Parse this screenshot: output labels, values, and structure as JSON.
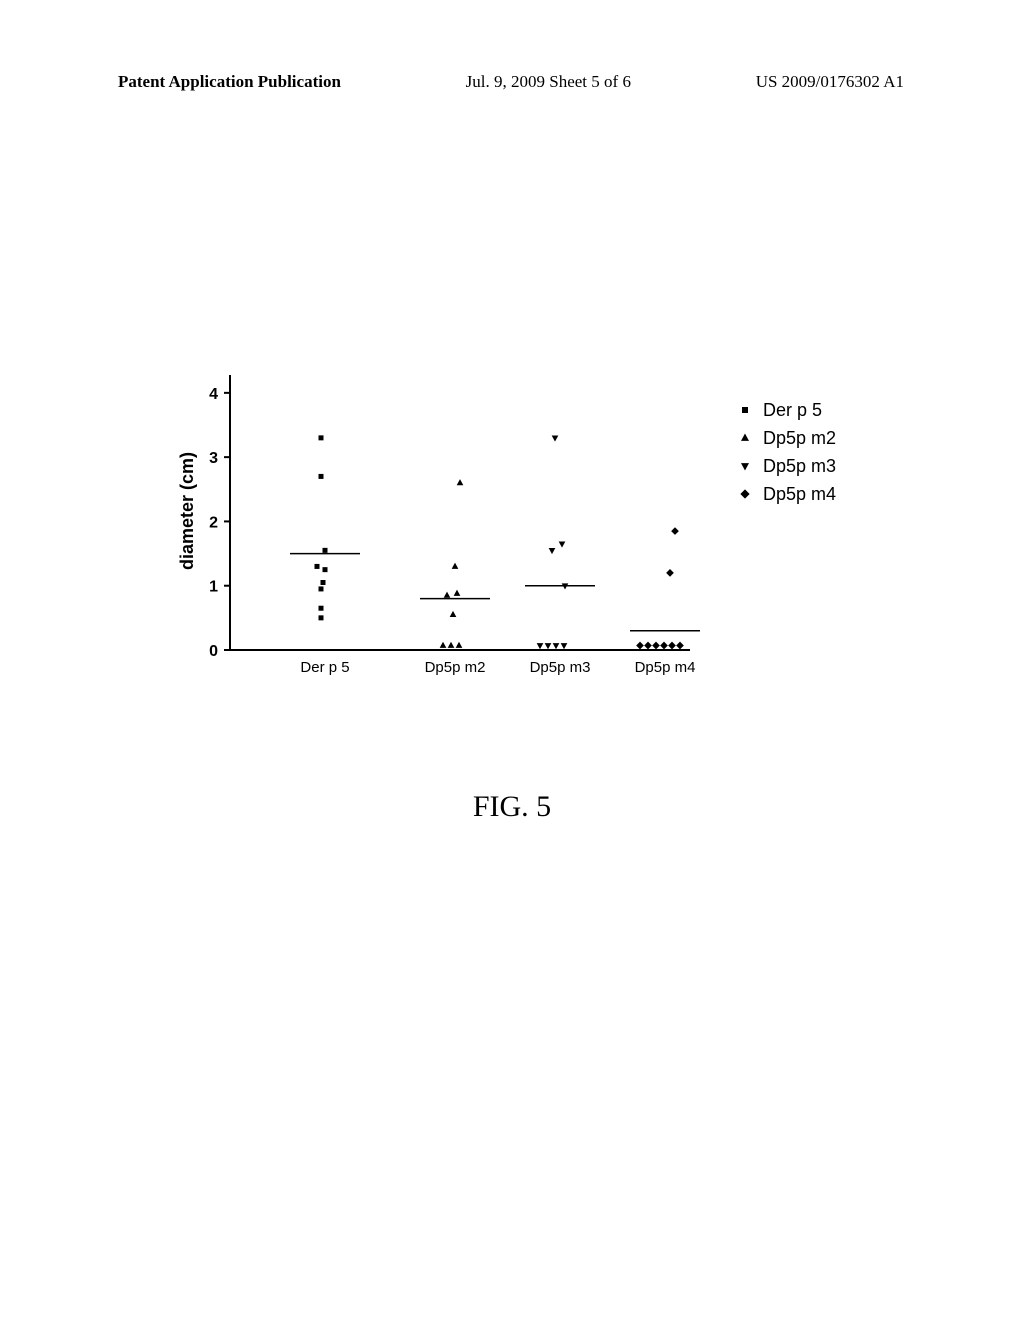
{
  "header": {
    "left": "Patent Application Publication",
    "center": "Jul. 9, 2009  Sheet 5 of 6",
    "right": "US 2009/0176302 A1"
  },
  "figure_label": "FIG. 5",
  "chart": {
    "type": "scatter",
    "ylabel": "diameter (cm)",
    "ylim": [
      0,
      4.2
    ],
    "yticks": [
      0,
      1,
      2,
      3,
      4
    ],
    "categories": [
      "Der p 5",
      "Dp5p m2",
      "Dp5p m3",
      "Dp5p m4"
    ],
    "category_x": [
      95,
      225,
      330,
      435
    ],
    "background_color": "#ffffff",
    "axis_color": "#000000",
    "marker_color": "#000000",
    "marker_size": 5,
    "median_line_halfwidth": 35,
    "series": [
      {
        "name": "Der p 5",
        "marker": "square",
        "x_center": 95,
        "median_y": 1.5,
        "points": [
          {
            "dx": -4,
            "y": 3.3
          },
          {
            "dx": -4,
            "y": 2.7
          },
          {
            "dx": 0,
            "y": 1.55
          },
          {
            "dx": -8,
            "y": 1.3
          },
          {
            "dx": 0,
            "y": 1.25
          },
          {
            "dx": -2,
            "y": 1.05
          },
          {
            "dx": -4,
            "y": 0.95
          },
          {
            "dx": -4,
            "y": 0.65
          },
          {
            "dx": -4,
            "y": 0.5
          }
        ]
      },
      {
        "name": "Dp5p m2",
        "marker": "triangle-up",
        "x_center": 225,
        "median_y": 0.8,
        "points": [
          {
            "dx": 5,
            "y": 2.6
          },
          {
            "dx": 0,
            "y": 1.3
          },
          {
            "dx": -8,
            "y": 0.85
          },
          {
            "dx": 2,
            "y": 0.88
          },
          {
            "dx": -2,
            "y": 0.55
          },
          {
            "dx": -12,
            "y": 0.07
          },
          {
            "dx": -4,
            "y": 0.07
          },
          {
            "dx": 4,
            "y": 0.07
          }
        ]
      },
      {
        "name": "Dp5p m3",
        "marker": "triangle-down",
        "x_center": 330,
        "median_y": 1.0,
        "points": [
          {
            "dx": -5,
            "y": 3.3
          },
          {
            "dx": 2,
            "y": 1.65
          },
          {
            "dx": -8,
            "y": 1.55
          },
          {
            "dx": 5,
            "y": 1.0
          },
          {
            "dx": -20,
            "y": 0.07
          },
          {
            "dx": -12,
            "y": 0.07
          },
          {
            "dx": -4,
            "y": 0.07
          },
          {
            "dx": 4,
            "y": 0.07
          }
        ]
      },
      {
        "name": "Dp5p m4",
        "marker": "diamond",
        "x_center": 435,
        "median_y": 0.3,
        "points": [
          {
            "dx": 10,
            "y": 1.85
          },
          {
            "dx": 5,
            "y": 1.2
          },
          {
            "dx": -25,
            "y": 0.07
          },
          {
            "dx": -17,
            "y": 0.07
          },
          {
            "dx": -9,
            "y": 0.07
          },
          {
            "dx": -1,
            "y": 0.07
          },
          {
            "dx": 7,
            "y": 0.07
          },
          {
            "dx": 15,
            "y": 0.07
          }
        ]
      }
    ],
    "legend": {
      "items": [
        {
          "label": "Der p 5",
          "marker": "square"
        },
        {
          "label": "Dp5p m2",
          "marker": "triangle-up"
        },
        {
          "label": "Dp5p m3",
          "marker": "triangle-down"
        },
        {
          "label": "Dp5p m4",
          "marker": "diamond"
        }
      ]
    }
  }
}
